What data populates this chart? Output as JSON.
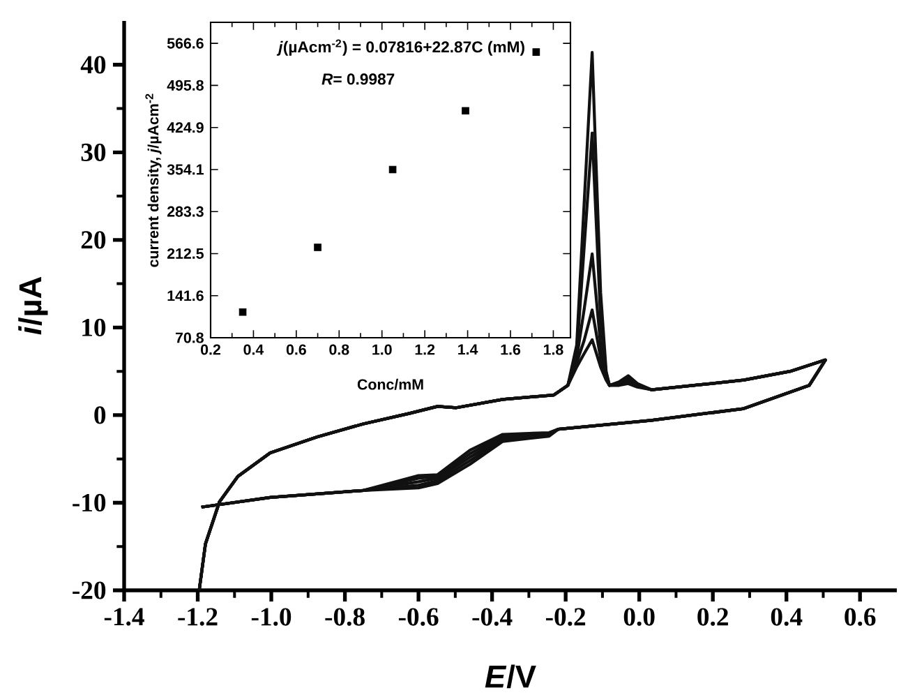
{
  "chart_data": [
    {
      "type": "line",
      "xlabel": "*E*/V",
      "ylabel": "*i*/µA",
      "xlim": [
        -1.4,
        0.7
      ],
      "ylim": [
        -20,
        45
      ],
      "xticks": [
        -1.4,
        -1.2,
        {
          "value": -1.0,
          "label": "-1.0"
        },
        -0.8,
        -0.6,
        -0.4,
        -0.2,
        {
          "value": 0.0,
          "label": "0.0"
        },
        0.2,
        0.4,
        0.6
      ],
      "yticks": [
        -20,
        -10,
        0,
        10,
        20,
        30,
        40
      ],
      "series": [
        {
          "color": "#111111",
          "x": [
            -1.196,
            -1.179,
            -1.141,
            -1.091,
            -1.003,
            -0.876,
            -0.75,
            -0.624,
            -0.548,
            -0.497,
            -0.371,
            -0.232,
            -0.194,
            -0.17,
            -0.15,
            -0.128,
            -0.105,
            -0.09,
            -0.081,
            -0.055,
            -0.03,
            -0.005,
            0.033,
            0.15,
            0.284,
            0.41,
            0.506,
            0.462,
            0.284,
            0.033,
            -0.22,
            -0.245,
            -0.371,
            -0.46,
            -0.548,
            -0.6,
            -0.75,
            -1.003,
            -1.19
          ],
          "values": [
            -20,
            -14.7,
            -9.9,
            -7.0,
            -4.3,
            -2.5,
            -1.0,
            0.2,
            1.0,
            0.85,
            1.8,
            2.3,
            3.4,
            8,
            24,
            41.4,
            14,
            5,
            3.4,
            3.8,
            4.5,
            3.6,
            2.9,
            3.4,
            4.0,
            5.0,
            6.3,
            3.4,
            0.75,
            -0.6,
            -1.6,
            -2.4,
            -3.0,
            -5.6,
            -7.8,
            -8.3,
            -8.6,
            -9.4,
            -10.5
          ]
        },
        {
          "color": "#111111",
          "x": [
            -1.196,
            -1.179,
            -1.141,
            -1.091,
            -1.003,
            -0.876,
            -0.75,
            -0.624,
            -0.548,
            -0.497,
            -0.371,
            -0.232,
            -0.194,
            -0.17,
            -0.15,
            -0.128,
            -0.105,
            -0.09,
            -0.081,
            -0.055,
            -0.03,
            -0.005,
            0.033,
            0.15,
            0.284,
            0.41,
            0.506,
            0.462,
            0.284,
            0.033,
            -0.22,
            -0.245,
            -0.371,
            -0.46,
            -0.548,
            -0.6,
            -0.75,
            -1.003,
            -1.19
          ],
          "values": [
            -20,
            -14.7,
            -9.9,
            -7.0,
            -4.3,
            -2.5,
            -1.0,
            0.2,
            1.0,
            0.85,
            1.8,
            2.3,
            3.4,
            7,
            19,
            32.2,
            11,
            4.8,
            3.4,
            3.7,
            4.3,
            3.5,
            2.9,
            3.4,
            4.0,
            5.0,
            6.3,
            3.4,
            0.75,
            -0.6,
            -1.6,
            -2.3,
            -2.8,
            -5.2,
            -7.5,
            -8.0,
            -8.6,
            -9.4,
            -10.5
          ]
        },
        {
          "color": "#111111",
          "x": [
            -1.196,
            -1.179,
            -1.141,
            -1.091,
            -1.003,
            -0.876,
            -0.75,
            -0.624,
            -0.548,
            -0.497,
            -0.371,
            -0.232,
            -0.194,
            -0.17,
            -0.15,
            -0.128,
            -0.105,
            -0.09,
            -0.081,
            -0.055,
            -0.03,
            -0.005,
            0.033,
            0.15,
            0.284,
            0.41,
            0.506,
            0.462,
            0.284,
            0.033,
            -0.22,
            -0.245,
            -0.371,
            -0.46,
            -0.548,
            -0.6,
            -0.75,
            -1.003,
            -1.19
          ],
          "values": [
            -20,
            -14.7,
            -9.9,
            -7.0,
            -4.3,
            -2.5,
            -1.0,
            0.2,
            1.0,
            0.85,
            1.8,
            2.3,
            3.4,
            6.5,
            12,
            18.4,
            8,
            4.5,
            3.4,
            3.6,
            4.0,
            3.4,
            2.9,
            3.4,
            4.0,
            5.0,
            6.3,
            3.4,
            0.75,
            -0.6,
            -1.6,
            -2.2,
            -2.6,
            -4.8,
            -7.2,
            -7.6,
            -8.6,
            -9.4,
            -10.5
          ]
        },
        {
          "color": "#111111",
          "x": [
            -1.196,
            -1.179,
            -1.141,
            -1.091,
            -1.003,
            -0.876,
            -0.75,
            -0.624,
            -0.548,
            -0.497,
            -0.371,
            -0.232,
            -0.194,
            -0.17,
            -0.15,
            -0.128,
            -0.105,
            -0.09,
            -0.081,
            -0.055,
            -0.03,
            -0.005,
            0.033,
            0.15,
            0.284,
            0.41,
            0.506,
            0.462,
            0.284,
            0.033,
            -0.22,
            -0.245,
            -0.371,
            -0.46,
            -0.548,
            -0.6,
            -0.75,
            -1.003,
            -1.19
          ],
          "values": [
            -20,
            -14.7,
            -9.9,
            -7.0,
            -4.3,
            -2.5,
            -1.0,
            0.2,
            1.0,
            0.85,
            1.8,
            2.3,
            3.4,
            6,
            8.5,
            12,
            6.5,
            4.2,
            3.4,
            3.5,
            3.8,
            3.3,
            2.9,
            3.4,
            4.0,
            5.0,
            6.3,
            3.4,
            0.75,
            -0.6,
            -1.6,
            -2.1,
            -2.4,
            -4.4,
            -7.0,
            -7.2,
            -8.6,
            -9.4,
            -10.5
          ]
        },
        {
          "color": "#111111",
          "x": [
            -1.196,
            -1.179,
            -1.141,
            -1.091,
            -1.003,
            -0.876,
            -0.75,
            -0.624,
            -0.548,
            -0.497,
            -0.371,
            -0.232,
            -0.194,
            -0.17,
            -0.15,
            -0.128,
            -0.105,
            -0.09,
            -0.081,
            -0.055,
            -0.03,
            -0.005,
            0.033,
            0.15,
            0.284,
            0.41,
            0.506,
            0.462,
            0.284,
            0.033,
            -0.22,
            -0.245,
            -0.371,
            -0.46,
            -0.548,
            -0.6,
            -0.75,
            -1.003,
            -1.19
          ],
          "values": [
            -20,
            -14.7,
            -9.9,
            -7.0,
            -4.3,
            -2.5,
            -1.0,
            0.2,
            1.0,
            0.85,
            1.8,
            2.3,
            3.4,
            5.5,
            7,
            8.6,
            5.5,
            4,
            3.4,
            3.4,
            3.6,
            3.2,
            2.9,
            3.4,
            4.0,
            5.0,
            6.3,
            3.4,
            0.75,
            -0.6,
            -1.6,
            -2.0,
            -2.2,
            -4.0,
            -6.8,
            -6.9,
            -8.6,
            -9.4,
            -10.5
          ]
        }
      ]
    },
    {
      "type": "scatter",
      "xlabel": "Conc/mM",
      "ylabel": "current density, *j*/µAcm$^{-2}$",
      "xlim": [
        0.2,
        1.88
      ],
      "ylim": [
        70.8,
        602
      ],
      "xticks": [
        0.2,
        0.4,
        0.6,
        0.8,
        {
          "value": 1.0,
          "label": "1.0"
        },
        1.2,
        1.4,
        1.6,
        1.8
      ],
      "yticks": [
        70.8,
        141.6,
        212.5,
        283.3,
        354.1,
        424.9,
        495.8,
        566.6
      ],
      "marker": "square",
      "series": [
        {
          "color": "#000000",
          "x": [
            0.35,
            0.7,
            1.05,
            1.39,
            1.72
          ],
          "values": [
            114,
            223,
            354,
            453,
            552
          ]
        }
      ],
      "annotations": [
        "*j*(µAcm$^{-2}$) = 0.07816+22.87C (mM)",
        "*R*= 0.9987"
      ]
    }
  ]
}
